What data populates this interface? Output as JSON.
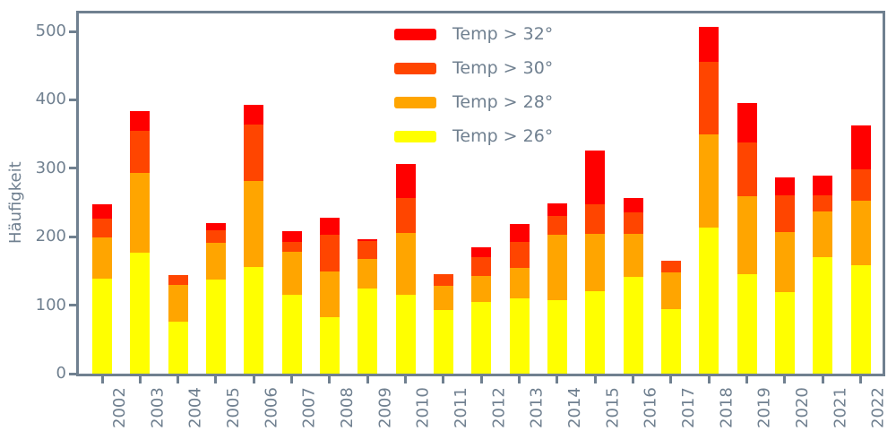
{
  "colors": {
    "text": "#708090",
    "spine": "#708090",
    "background": "#ffffff",
    "red": "#ff0000",
    "orangered": "#ff4500",
    "orange": "#ffa500",
    "yellow": "#ffff00"
  },
  "legend": [
    {
      "label": "Temp > 32°",
      "color": "#ff0000"
    },
    {
      "label": "Temp > 30°",
      "color": "#ff4500"
    },
    {
      "label": "Temp > 28°",
      "color": "#ffa500"
    },
    {
      "label": "Temp > 26°",
      "color": "#ffff00"
    }
  ],
  "chart_data": {
    "type": "bar",
    "stacked": true,
    "title": "",
    "xlabel": "",
    "ylabel": "Häufigkeit",
    "ylim": [
      0,
      530
    ],
    "grid": false,
    "legend_position": "upper center-right inside plot",
    "y_ticks": [
      0,
      100,
      200,
      300,
      400,
      500
    ],
    "categories": [
      "2002",
      "2003",
      "2004",
      "2005",
      "2006",
      "2007",
      "2008",
      "2009",
      "2010",
      "2011",
      "2012",
      "2013",
      "2014",
      "2015",
      "2016",
      "2017",
      "2018",
      "2019",
      "2020",
      "2021",
      "2022"
    ],
    "series": [
      {
        "name": "Temp > 26°",
        "color": "#ffff00",
        "values": [
          139,
          177,
          76,
          138,
          156,
          115,
          83,
          124,
          115,
          93,
          105,
          110,
          107,
          121,
          141,
          94,
          214,
          145,
          119,
          170,
          159
        ]
      },
      {
        "name": "Temp > 28°",
        "color": "#ffa500",
        "values": [
          60,
          116,
          54,
          53,
          126,
          63,
          66,
          43,
          90,
          35,
          38,
          44,
          96,
          83,
          63,
          54,
          136,
          114,
          88,
          67,
          93
        ]
      },
      {
        "name": "Temp > 30°",
        "color": "#ff4500",
        "values": [
          27,
          62,
          14,
          18,
          82,
          15,
          54,
          27,
          51,
          17,
          27,
          39,
          28,
          44,
          32,
          17,
          106,
          79,
          53,
          24,
          46
        ]
      },
      {
        "name": "Temp > 32°",
        "color": "#ff0000",
        "values": [
          22,
          28,
          0,
          11,
          29,
          15,
          25,
          3,
          50,
          0,
          14,
          26,
          18,
          78,
          20,
          0,
          51,
          57,
          27,
          28,
          65
        ]
      }
    ],
    "stack_totals": [
      248,
      383,
      144,
      220,
      393,
      208,
      228,
      197,
      306,
      145,
      184,
      219,
      249,
      326,
      256,
      165,
      507,
      395,
      287,
      289,
      363
    ]
  }
}
